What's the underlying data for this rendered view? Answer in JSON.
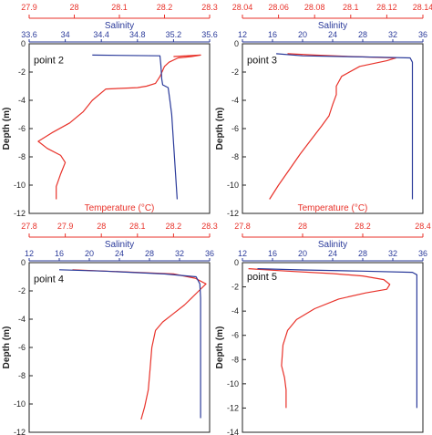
{
  "chart_data": [
    {
      "type": "line",
      "annotation": "point 2",
      "ylabel": "Depth (m)",
      "ylim": [
        -12,
        0
      ],
      "yticks": [
        0,
        -2,
        -4,
        -6,
        -8,
        -10,
        -12
      ],
      "top_axis": {
        "label": "Temperature (°C)",
        "range": [
          27.9,
          28.3
        ],
        "ticks": [
          "27.9",
          "28",
          "28.1",
          "28.2",
          "28.3"
        ],
        "color": "#e8322a"
      },
      "bottom_axis": {
        "label": "Salinity",
        "range": [
          33.6,
          35.6
        ],
        "ticks": [
          "33.6",
          "34",
          "34.4",
          "34.8",
          "35.2",
          "35.6"
        ],
        "color": "#2a3a9a"
      },
      "series": [
        {
          "axis": "temperature",
          "color": "#e8322a",
          "points": [
            [
              28.22,
              -0.9
            ],
            [
              28.28,
              -0.8
            ],
            [
              28.26,
              -0.9
            ],
            [
              28.23,
              -1.0
            ],
            [
              28.21,
              -1.3
            ],
            [
              28.2,
              -1.6
            ],
            [
              28.19,
              -2.3
            ],
            [
              28.18,
              -2.8
            ],
            [
              28.16,
              -3.0
            ],
            [
              28.14,
              -3.1
            ],
            [
              28.07,
              -3.2
            ],
            [
              28.04,
              -4.0
            ],
            [
              28.02,
              -4.8
            ],
            [
              27.99,
              -5.6
            ],
            [
              27.95,
              -6.3
            ],
            [
              27.92,
              -6.9
            ],
            [
              27.94,
              -7.4
            ],
            [
              27.97,
              -7.9
            ],
            [
              27.98,
              -8.4
            ],
            [
              27.97,
              -9.2
            ],
            [
              27.96,
              -10.1
            ],
            [
              27.96,
              -11.0
            ]
          ]
        },
        {
          "axis": "salinity",
          "color": "#2a3a9a",
          "points": [
            [
              34.3,
              -0.8
            ],
            [
              35.05,
              -0.85
            ],
            [
              35.06,
              -1.5
            ],
            [
              35.07,
              -2.5
            ],
            [
              35.08,
              -2.9
            ],
            [
              35.14,
              -3.1
            ],
            [
              35.16,
              -4.0
            ],
            [
              35.18,
              -5.0
            ],
            [
              35.19,
              -6.0
            ],
            [
              35.2,
              -7.0
            ],
            [
              35.21,
              -8.0
            ],
            [
              35.22,
              -9.0
            ],
            [
              35.23,
              -10.0
            ],
            [
              35.24,
              -11.0
            ]
          ]
        }
      ]
    },
    {
      "type": "line",
      "annotation": "point 3",
      "ylabel": "Depth (m)",
      "ylim": [
        -12,
        0
      ],
      "yticks": [
        0,
        -2,
        -4,
        -6,
        -8,
        -10,
        -12
      ],
      "top_axis": {
        "label": "Temperature (°C)",
        "range": [
          28.04,
          28.14
        ],
        "ticks": [
          "28.04",
          "28.06",
          "28.08",
          "28.1",
          "28.12",
          "28.14"
        ],
        "color": "#e8322a"
      },
      "bottom_axis": {
        "label": "Salinity",
        "range": [
          12,
          36
        ],
        "ticks": [
          "12",
          "16",
          "20",
          "24",
          "28",
          "32",
          "36"
        ],
        "color": "#2a3a9a"
      },
      "series": [
        {
          "axis": "temperature",
          "color": "#e8322a",
          "points": [
            [
              28.065,
              -0.7
            ],
            [
              28.08,
              -0.8
            ],
            [
              28.1,
              -0.9
            ],
            [
              28.125,
              -1.0
            ],
            [
              28.12,
              -1.2
            ],
            [
              28.105,
              -1.6
            ],
            [
              28.095,
              -2.3
            ],
            [
              28.092,
              -3.0
            ],
            [
              28.092,
              -3.6
            ],
            [
              28.09,
              -4.3
            ],
            [
              28.088,
              -5.1
            ],
            [
              28.084,
              -5.8
            ],
            [
              28.078,
              -6.8
            ],
            [
              28.072,
              -7.8
            ],
            [
              28.066,
              -8.9
            ],
            [
              28.06,
              -10.0
            ],
            [
              28.055,
              -11.0
            ]
          ]
        },
        {
          "axis": "salinity",
          "color": "#2a3a9a",
          "points": [
            [
              16.5,
              -0.7
            ],
            [
              20,
              -0.85
            ],
            [
              30,
              -0.95
            ],
            [
              34.3,
              -1.0
            ],
            [
              34.6,
              -1.3
            ],
            [
              34.6,
              -2.5
            ],
            [
              34.6,
              -5.0
            ],
            [
              34.6,
              -8.0
            ],
            [
              34.6,
              -11.0
            ]
          ]
        }
      ]
    },
    {
      "type": "line",
      "annotation": "point 4",
      "ylabel": "Depth (m)",
      "ylim": [
        -12,
        0
      ],
      "yticks": [
        0,
        -2,
        -4,
        -6,
        -8,
        -10,
        -12
      ],
      "top_axis": {
        "label": "Temperature (°C)",
        "range": [
          27.8,
          28.3
        ],
        "ticks": [
          "27.8",
          "27.9",
          "28",
          "28.1",
          "28.2",
          "28.3"
        ],
        "color": "#e8322a"
      },
      "bottom_axis": {
        "label": "Salinity",
        "range": [
          12,
          36
        ],
        "ticks": [
          "12",
          "16",
          "20",
          "24",
          "28",
          "32",
          "36"
        ],
        "color": "#2a3a9a"
      },
      "series": [
        {
          "axis": "temperature",
          "color": "#e8322a",
          "points": [
            [
              27.92,
              -0.5
            ],
            [
              28.2,
              -0.8
            ],
            [
              28.26,
              -1.1
            ],
            [
              28.29,
              -1.5
            ],
            [
              28.27,
              -2.0
            ],
            [
              28.25,
              -2.5
            ],
            [
              28.23,
              -3.0
            ],
            [
              28.2,
              -3.6
            ],
            [
              28.17,
              -4.2
            ],
            [
              28.15,
              -4.8
            ],
            [
              28.14,
              -6.0
            ],
            [
              28.135,
              -7.5
            ],
            [
              28.13,
              -9.0
            ],
            [
              28.12,
              -10.2
            ],
            [
              28.11,
              -11.1
            ]
          ]
        },
        {
          "axis": "salinity",
          "color": "#2a3a9a",
          "points": [
            [
              16,
              -0.5
            ],
            [
              22,
              -0.6
            ],
            [
              30,
              -0.8
            ],
            [
              34.2,
              -1.0
            ],
            [
              34.7,
              -1.5
            ],
            [
              34.8,
              -2.5
            ],
            [
              34.8,
              -5.0
            ],
            [
              34.8,
              -8.0
            ],
            [
              34.8,
              -11.0
            ]
          ]
        }
      ]
    },
    {
      "type": "line",
      "annotation": "point 5",
      "ylabel": "Depth (m)",
      "ylim": [
        -14,
        0
      ],
      "yticks": [
        0,
        -2,
        -4,
        -6,
        -8,
        -10,
        -12,
        -14
      ],
      "top_axis": {
        "label": "Temperature (°C)",
        "range": [
          27.8,
          28.4
        ],
        "ticks": [
          "27.8",
          "28",
          "28.2",
          "28.4"
        ],
        "color": "#e8322a"
      },
      "bottom_axis": {
        "label": "Salinity",
        "range": [
          12,
          36
        ],
        "ticks": [
          "12",
          "16",
          "20",
          "24",
          "28",
          "32",
          "36"
        ],
        "color": "#2a3a9a"
      },
      "series": [
        {
          "axis": "temperature",
          "color": "#e8322a",
          "points": [
            [
              27.82,
              -0.5
            ],
            [
              27.95,
              -0.7
            ],
            [
              28.1,
              -0.9
            ],
            [
              28.2,
              -1.1
            ],
            [
              28.27,
              -1.4
            ],
            [
              28.29,
              -1.8
            ],
            [
              28.28,
              -2.2
            ],
            [
              28.21,
              -2.5
            ],
            [
              28.12,
              -3.0
            ],
            [
              28.04,
              -3.8
            ],
            [
              27.98,
              -4.7
            ],
            [
              27.95,
              -5.6
            ],
            [
              27.935,
              -6.8
            ],
            [
              27.93,
              -8.5
            ],
            [
              27.94,
              -9.5
            ],
            [
              27.945,
              -10.5
            ],
            [
              27.945,
              -12.0
            ]
          ]
        },
        {
          "axis": "salinity",
          "color": "#2a3a9a",
          "points": [
            [
              14,
              -0.5
            ],
            [
              20,
              -0.6
            ],
            [
              28,
              -0.7
            ],
            [
              34.6,
              -0.8
            ],
            [
              35.2,
              -1.0
            ],
            [
              35.2,
              -2.0
            ],
            [
              35.2,
              -5.0
            ],
            [
              35.2,
              -9.0
            ],
            [
              35.2,
              -12.0
            ]
          ]
        }
      ]
    }
  ]
}
